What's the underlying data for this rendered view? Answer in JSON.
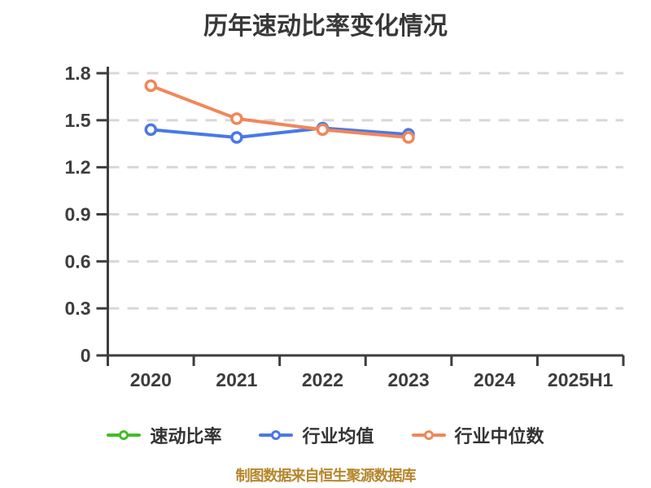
{
  "title": "历年速动比率变化情况",
  "footer": {
    "text": "制图数据来自恒生聚源数据库"
  },
  "colors": {
    "background": "#ffffff",
    "axis": "#3d3d3d",
    "grid": "#d8d8d8",
    "title_text": "#383838",
    "tick_text": "#3d3d3d",
    "legend_text": "#333333",
    "footer_text": "#b5862b",
    "marker_fill": "#ffffff"
  },
  "chart_data": {
    "type": "line",
    "title": "历年速动比率变化情况",
    "categories": [
      "2020",
      "2021",
      "2022",
      "2023",
      "2024",
      "2025H1"
    ],
    "y_ticks": [
      0,
      0.3,
      0.6,
      0.9,
      1.2,
      1.5,
      1.8
    ],
    "ylim": [
      0,
      1.8
    ],
    "grid": "horizontal-dashed",
    "legend_position": "bottom",
    "series": [
      {
        "id": "quick-ratio",
        "name": "速动比率",
        "color": "#45bd28",
        "values": [
          null,
          null,
          null,
          null,
          null,
          null
        ]
      },
      {
        "id": "industry-mean",
        "name": "行业均值",
        "color": "#4a78e6",
        "values": [
          1.44,
          1.39,
          1.45,
          1.41,
          null,
          null
        ]
      },
      {
        "id": "industry-median",
        "name": "行业中位数",
        "color": "#f0875a",
        "values": [
          1.72,
          1.51,
          1.44,
          1.39,
          null,
          null
        ]
      }
    ]
  }
}
